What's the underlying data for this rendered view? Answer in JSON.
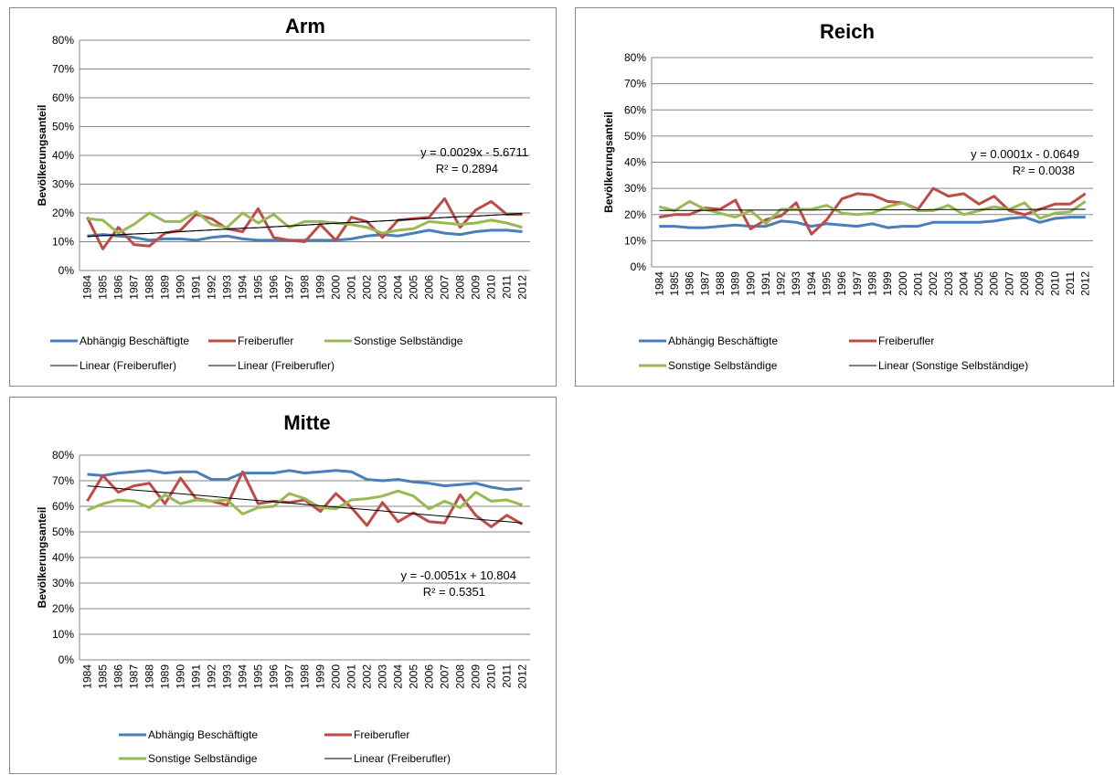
{
  "chart_data": [
    {
      "type": "line",
      "title": "Arm",
      "y_label": "Bevölkerungsanteil",
      "categories": [
        "1984",
        "1985",
        "1986",
        "1987",
        "1988",
        "1989",
        "1990",
        "1991",
        "1992",
        "1993",
        "1994",
        "1995",
        "1996",
        "1997",
        "1998",
        "1999",
        "2000",
        "2001",
        "2002",
        "2003",
        "2004",
        "2005",
        "2006",
        "2007",
        "2008",
        "2009",
        "2010",
        "2011",
        "2012"
      ],
      "ylim": [
        0,
        80
      ],
      "yticks": [
        {
          "value": 0,
          "label": "0%"
        },
        {
          "value": 10,
          "label": "10%"
        },
        {
          "value": 20,
          "label": "20%"
        },
        {
          "value": 30,
          "label": "30%"
        },
        {
          "value": 40,
          "label": "40%"
        },
        {
          "value": 50,
          "label": "50%"
        },
        {
          "value": 60,
          "label": "60%"
        },
        {
          "value": 70,
          "label": "70%"
        },
        {
          "value": 80,
          "label": "80%"
        }
      ],
      "grid": true,
      "annotations": [
        "y = 0.0029x - 5.6711",
        "R² = 0.2894"
      ],
      "series": [
        {
          "name": "Abhängig Beschäftigte",
          "color": "#4a7ebb",
          "values": [
            12,
            12.5,
            12,
            11.5,
            10.5,
            11,
            11,
            10.5,
            11.5,
            12,
            11,
            10.5,
            10.5,
            10.5,
            10.5,
            10.5,
            10.5,
            11,
            12,
            12.5,
            12,
            13,
            14,
            13,
            12.5,
            13.5,
            14,
            14,
            13.5
          ]
        },
        {
          "name": "Freiberufler",
          "color": "#be4b48",
          "values": [
            18.5,
            7.5,
            15,
            9,
            8.5,
            13,
            14,
            19.5,
            18,
            14.5,
            13.5,
            21.5,
            11.5,
            10.5,
            10,
            16,
            10.5,
            18.5,
            17,
            11.5,
            17.5,
            18,
            18.5,
            25,
            15,
            21,
            24,
            19.5,
            19.5
          ]
        },
        {
          "name": "Sonstige Selbständige",
          "color": "#98b954",
          "values": [
            18,
            17.5,
            13,
            16,
            20,
            17,
            17,
            20.5,
            16,
            15,
            20,
            16.5,
            19.5,
            15,
            17,
            17,
            16.5,
            16,
            15,
            13,
            14,
            14.5,
            17,
            16.5,
            16,
            16.5,
            17.5,
            16.5,
            15
          ]
        },
        {
          "name": "Linear (Freiberufler)",
          "color": "#000000",
          "values": [
            11.8,
            12.1,
            12.4,
            12.7,
            12.9,
            13.2,
            13.5,
            13.8,
            14.1,
            14.4,
            14.7,
            14.9,
            15.2,
            15.5,
            15.8,
            16.1,
            16.4,
            16.7,
            16.9,
            17.2,
            17.5,
            17.8,
            18.1,
            18.4,
            18.7,
            18.9,
            19.2,
            19.5,
            19.8
          ]
        },
        {
          "name": "Linear (Freiberufler)",
          "color": "#000000",
          "values": [
            11.8,
            12.1,
            12.4,
            12.7,
            12.9,
            13.2,
            13.5,
            13.8,
            14.1,
            14.4,
            14.7,
            14.9,
            15.2,
            15.5,
            15.8,
            16.1,
            16.4,
            16.7,
            16.9,
            17.2,
            17.5,
            17.8,
            18.1,
            18.4,
            18.7,
            18.9,
            19.2,
            19.5,
            19.8
          ]
        }
      ]
    },
    {
      "type": "line",
      "title": "Reich",
      "y_label": "Bevölkerungsanteil",
      "categories": [
        "1984",
        "1985",
        "1986",
        "1987",
        "1988",
        "1989",
        "1990",
        "1991",
        "1992",
        "1993",
        "1994",
        "1995",
        "1996",
        "1997",
        "1998",
        "1999",
        "2000",
        "2001",
        "2002",
        "2003",
        "2004",
        "2005",
        "2006",
        "2007",
        "2008",
        "2009",
        "2010",
        "2011",
        "2012"
      ],
      "ylim": [
        0,
        80
      ],
      "yticks": [
        {
          "value": 0,
          "label": "0%"
        },
        {
          "value": 10,
          "label": "10%"
        },
        {
          "value": 20,
          "label": "20%"
        },
        {
          "value": 30,
          "label": "30%"
        },
        {
          "value": 40,
          "label": "40%"
        },
        {
          "value": 50,
          "label": "50%"
        },
        {
          "value": 60,
          "label": "60%"
        },
        {
          "value": 70,
          "label": "70%"
        },
        {
          "value": 80,
          "label": "80%"
        }
      ],
      "grid": true,
      "annotations": [
        "y = 0.0001x - 0.0649",
        "R² = 0.0038"
      ],
      "series": [
        {
          "name": "Abhängig Beschäftigte",
          "color": "#4a7ebb",
          "values": [
            15.5,
            15.5,
            15,
            15,
            15.5,
            16,
            15.5,
            15.5,
            17.5,
            17,
            15.5,
            16.5,
            16,
            15.5,
            16.5,
            15,
            15.5,
            15.5,
            17,
            17,
            17,
            17,
            17.5,
            18.5,
            19,
            17,
            18.5,
            19,
            19
          ]
        },
        {
          "name": "Freiberufler",
          "color": "#be4b48",
          "values": [
            19,
            20,
            20,
            22.5,
            22,
            25.5,
            14.5,
            18,
            19.5,
            24.5,
            12.5,
            18,
            26,
            28,
            27.5,
            25,
            24.5,
            22,
            30,
            27,
            28,
            24,
            27,
            21.5,
            20,
            22,
            24,
            24,
            28
          ]
        },
        {
          "name": "Sonstige Selbständige",
          "color": "#98b954",
          "values": [
            23,
            21.5,
            25,
            22,
            20.5,
            19,
            21.5,
            16.5,
            22,
            22,
            22,
            23.5,
            20.5,
            20,
            20.5,
            23,
            24.5,
            21.5,
            21.5,
            23.5,
            20,
            21.5,
            23,
            22,
            24.5,
            18.5,
            20.5,
            21,
            25
          ]
        },
        {
          "name": "Linear (Sonstige Selbständige)",
          "color": "#000000",
          "values": [
            21.6,
            21.6,
            21.6,
            21.6,
            21.7,
            21.7,
            21.7,
            21.7,
            21.7,
            21.7,
            21.7,
            21.8,
            21.8,
            21.8,
            21.8,
            21.8,
            21.8,
            21.8,
            21.9,
            21.9,
            21.9,
            21.9,
            21.9,
            21.9,
            21.9,
            22.0,
            22.0,
            22.0,
            22.0
          ]
        }
      ]
    },
    {
      "type": "line",
      "title": "Mitte",
      "y_label": "Bevölkerungsanteil",
      "categories": [
        "1984",
        "1985",
        "1986",
        "1987",
        "1988",
        "1989",
        "1990",
        "1991",
        "1992",
        "1993",
        "1994",
        "1995",
        "1996",
        "1997",
        "1998",
        "1999",
        "2000",
        "2001",
        "2002",
        "2003",
        "2004",
        "2005",
        "2006",
        "2007",
        "2008",
        "2009",
        "2010",
        "2011",
        "2012"
      ],
      "ylim": [
        0,
        80
      ],
      "yticks": [
        {
          "value": 0,
          "label": "0%"
        },
        {
          "value": 10,
          "label": "10%"
        },
        {
          "value": 20,
          "label": "20%"
        },
        {
          "value": 30,
          "label": "30%"
        },
        {
          "value": 40,
          "label": "40%"
        },
        {
          "value": 50,
          "label": "50%"
        },
        {
          "value": 60,
          "label": "60%"
        },
        {
          "value": 70,
          "label": "70%"
        },
        {
          "value": 80,
          "label": "80%"
        }
      ],
      "grid": true,
      "annotations": [
        "y = -0.0051x + 10.804",
        "R² = 0.5351"
      ],
      "series": [
        {
          "name": "Abhängig Beschäftigte",
          "color": "#4a7ebb",
          "values": [
            72.5,
            72,
            73,
            73.5,
            74,
            73,
            73.5,
            73.5,
            70.5,
            70.5,
            73,
            73,
            73,
            74,
            73,
            73.5,
            74,
            73.5,
            70.5,
            70,
            70.5,
            69.5,
            69,
            68,
            68.5,
            69,
            67.5,
            66.5,
            67
          ]
        },
        {
          "name": "Freiberufler",
          "color": "#be4b48",
          "values": [
            62,
            72,
            65.5,
            68,
            69,
            61,
            71,
            63,
            62,
            60.5,
            73.5,
            61,
            62,
            61.5,
            62.5,
            58,
            65,
            59.5,
            52.5,
            61.5,
            54,
            57.5,
            54,
            53.5,
            64.5,
            56.5,
            52,
            56.5,
            53
          ]
        },
        {
          "name": "Sonstige Selbständige",
          "color": "#98b954",
          "values": [
            58.5,
            61,
            62.5,
            62,
            59.5,
            64.5,
            61,
            62.5,
            62,
            62.5,
            57,
            59.5,
            60,
            65,
            63,
            59.5,
            59,
            62.5,
            63,
            64,
            66,
            64,
            59,
            62,
            59.5,
            65.5,
            62,
            62.5,
            60.5
          ]
        },
        {
          "name": "Linear (Freiberufler)",
          "color": "#000000",
          "values": [
            68,
            67.5,
            67,
            66.4,
            65.9,
            65.4,
            64.9,
            64.4,
            63.9,
            63.3,
            62.8,
            62.3,
            61.8,
            61.3,
            60.7,
            60.2,
            59.7,
            59.2,
            58.7,
            58.2,
            57.6,
            57.1,
            56.6,
            56.1,
            55.6,
            55,
            54.5,
            54,
            53.5
          ]
        }
      ]
    }
  ]
}
